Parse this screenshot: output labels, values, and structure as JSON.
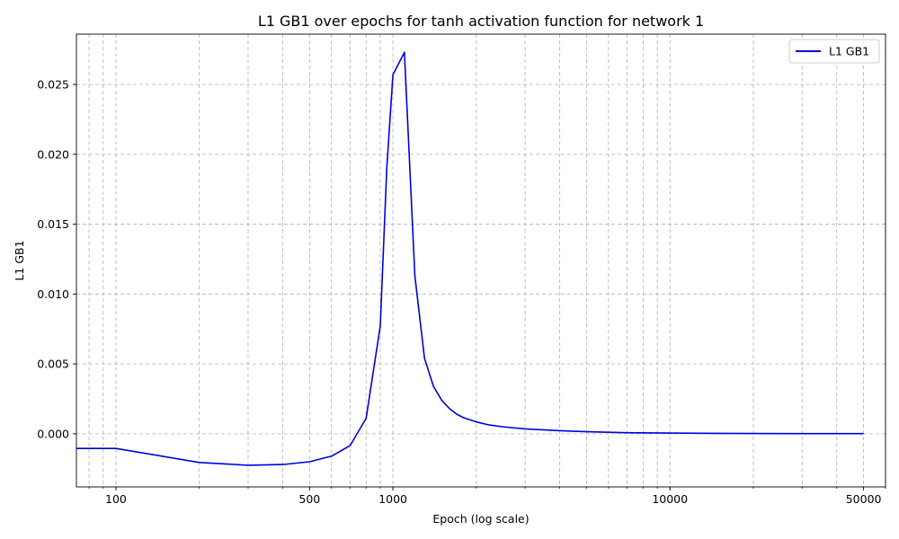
{
  "chart_data": {
    "type": "line",
    "title": "L1 GB1 over epochs for tanh activation function for network 1",
    "xlabel": "Epoch (log scale)",
    "ylabel": "L1 GB1",
    "xscale": "log",
    "xlim": [
      72,
      60000
    ],
    "ylim": [
      -0.0038,
      0.0286
    ],
    "xticks": [
      100,
      500,
      1000,
      10000,
      50000
    ],
    "xtick_labels": [
      "100",
      "500",
      "1000",
      "10000",
      "50000"
    ],
    "yticks": [
      0.0,
      0.005,
      0.01,
      0.015,
      0.02,
      0.025
    ],
    "ytick_labels": [
      "0.000",
      "0.005",
      "0.010",
      "0.015",
      "0.020",
      "0.025"
    ],
    "grid": true,
    "legend_position": "upper right",
    "series": [
      {
        "name": "L1 GB1",
        "color": "#0000dd",
        "x": [
          50,
          100,
          200,
          300,
          400,
          500,
          600,
          700,
          800,
          900,
          950,
          1000,
          1100,
          1200,
          1300,
          1400,
          1500,
          1600,
          1700,
          1800,
          2000,
          2200,
          2500,
          3000,
          4000,
          5000,
          7000,
          10000,
          15000,
          20000,
          30000,
          50000
        ],
        "values": [
          -0.00105,
          -0.00105,
          -0.00205,
          -0.00225,
          -0.0022,
          -0.002,
          -0.0016,
          -0.00085,
          0.0011,
          0.0077,
          0.019,
          0.0257,
          0.0273,
          0.0113,
          0.0054,
          0.0034,
          0.0024,
          0.0018,
          0.0014,
          0.00115,
          0.00085,
          0.00065,
          0.0005,
          0.00035,
          0.00022,
          0.00015,
          8e-05,
          5e-05,
          3e-05,
          2e-05,
          1e-05,
          1e-05
        ]
      }
    ]
  }
}
